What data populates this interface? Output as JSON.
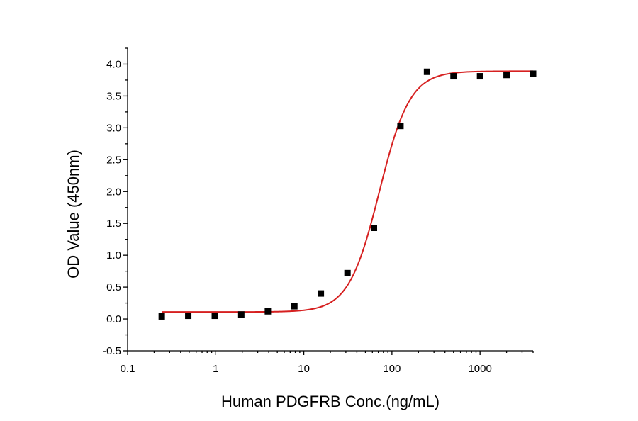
{
  "chart_data": {
    "type": "scatter",
    "title": "",
    "xlabel": "Human PDGFRB Conc.(ng/mL)",
    "ylabel": "OD Value (450nm)",
    "x_scale": "log",
    "xlim": [
      0.1,
      4000
    ],
    "ylim": [
      -0.5,
      4.25
    ],
    "x_ticks": [
      0.1,
      1,
      10,
      100,
      1000
    ],
    "x_tick_labels": [
      "0.1",
      "1",
      "10",
      "100",
      "1000"
    ],
    "y_ticks": [
      -0.5,
      0.0,
      0.5,
      1.0,
      1.5,
      2.0,
      2.5,
      3.0,
      3.5,
      4.0
    ],
    "y_tick_labels": [
      "-0.5",
      "0.0",
      "0.5",
      "1.0",
      "1.5",
      "2.0",
      "2.5",
      "3.0",
      "3.5",
      "4.0"
    ],
    "grid": false,
    "series": [
      {
        "kind": "scatter",
        "marker": "square",
        "color": "#000000",
        "x": [
          0.244,
          0.488,
          0.977,
          1.95,
          3.91,
          7.81,
          15.6,
          31.3,
          62.5,
          125,
          250,
          500,
          1000,
          2000,
          4000
        ],
        "y": [
          0.04,
          0.05,
          0.05,
          0.07,
          0.12,
          0.2,
          0.4,
          0.72,
          1.43,
          3.03,
          3.88,
          3.81,
          3.81,
          3.83,
          3.85
        ]
      },
      {
        "kind": "fit-curve",
        "color": "#d62020",
        "model": "4PL",
        "bottom": 0.11,
        "top": 3.89,
        "ec50": 72,
        "hill": 2.5,
        "x_range": [
          0.244,
          4000
        ]
      }
    ]
  }
}
